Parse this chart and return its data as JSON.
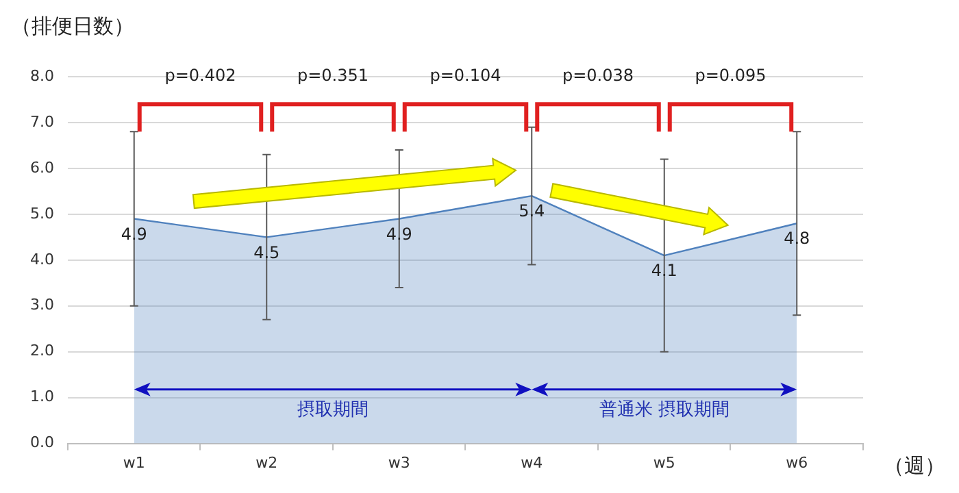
{
  "chart_data": {
    "type": "area",
    "ylabel": "（排便日数）",
    "xlabel": "（週）",
    "categories": [
      "w1",
      "w2",
      "w3",
      "w4",
      "w5",
      "w6"
    ],
    "values": [
      4.9,
      4.5,
      4.9,
      5.4,
      4.1,
      4.8
    ],
    "errors": [
      1.9,
      1.8,
      1.5,
      1.5,
      2.1,
      2.0
    ],
    "color": "#4f81bd",
    "data_labels": true,
    "ylim": [
      0,
      8
    ],
    "yticks": [
      {
        "value": 0,
        "label": "0.0"
      },
      {
        "value": 1,
        "label": "1.0"
      },
      {
        "value": 2,
        "label": "2.0"
      },
      {
        "value": 3,
        "label": "3.0"
      },
      {
        "value": 4,
        "label": "4.0"
      },
      {
        "value": 5,
        "label": "5.0"
      },
      {
        "value": 6,
        "label": "6.0"
      },
      {
        "value": 7,
        "label": "7.0"
      },
      {
        "value": 8,
        "label": "8.0"
      }
    ],
    "grid": "y",
    "legend": false,
    "marker": "none",
    "annotations": [
      "p=0.402",
      "p=0.351",
      "p=0.104",
      "p=0.038",
      "p=0.095",
      "摂取期間",
      "普通米 摂取期間"
    ]
  }
}
